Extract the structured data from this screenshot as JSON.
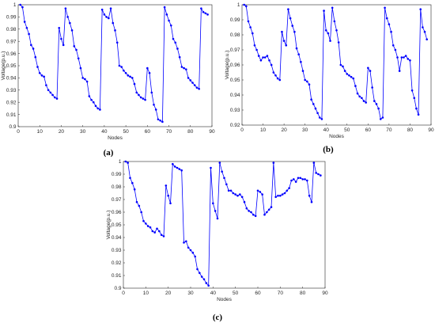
{
  "figure": {
    "line_color": "#0000ff",
    "marker_color": "#0000ff"
  },
  "chart_data": [
    {
      "type": "line",
      "panel_label": "(a)",
      "xlabel": "Nodes",
      "ylabel": "Voltage(p.u.)",
      "xlim": [
        0,
        90
      ],
      "ylim": [
        0.9,
        1.0
      ],
      "xticks": [
        "0",
        "10",
        "20",
        "30",
        "40",
        "50",
        "60",
        "70",
        "80",
        "90"
      ],
      "yticks": [
        "0.9",
        "0.91",
        "0.92",
        "0.93",
        "0.94",
        "0.95",
        "0.96",
        "0.97",
        "0.98",
        "0.99",
        "1"
      ],
      "grid": false,
      "series": [
        {
          "x": [
            1,
            2,
            3,
            4,
            5,
            6,
            7,
            8,
            9,
            10,
            11,
            12,
            13,
            14,
            15,
            16,
            17,
            18,
            19,
            20,
            21,
            22,
            23,
            24,
            25,
            26,
            27,
            28,
            29,
            30,
            31,
            32,
            33,
            34,
            35,
            36,
            37,
            38,
            39,
            40,
            41,
            42,
            43,
            44,
            45,
            46,
            47,
            48,
            49,
            50,
            51,
            52,
            53,
            54,
            55,
            56,
            57,
            58,
            59,
            60,
            61,
            62,
            63,
            64,
            65,
            66,
            67,
            68,
            69,
            70,
            71,
            72,
            73,
            74,
            75,
            76,
            77,
            78,
            79,
            80,
            81,
            82,
            83,
            84,
            85,
            86,
            87,
            88
          ],
          "y": [
            1.0,
            0.998,
            0.986,
            0.981,
            0.976,
            0.967,
            0.964,
            0.957,
            0.949,
            0.944,
            0.942,
            0.941,
            0.934,
            0.93,
            0.928,
            0.926,
            0.924,
            0.923,
            0.981,
            0.972,
            0.967,
            0.997,
            0.99,
            0.985,
            0.979,
            0.966,
            0.963,
            0.956,
            0.948,
            0.94,
            0.939,
            0.937,
            0.925,
            0.922,
            0.92,
            0.917,
            0.915,
            0.914,
            0.996,
            0.992,
            0.99,
            0.989,
            0.997,
            0.985,
            0.979,
            0.969,
            0.95,
            0.949,
            0.946,
            0.944,
            0.942,
            0.941,
            0.94,
            0.935,
            0.928,
            0.926,
            0.924,
            0.923,
            0.922,
            0.948,
            0.944,
            0.928,
            0.918,
            0.914,
            0.906,
            0.905,
            0.904,
            0.998,
            0.992,
            0.987,
            0.983,
            0.972,
            0.969,
            0.964,
            0.957,
            0.949,
            0.948,
            0.947,
            0.94,
            0.938,
            0.936,
            0.934,
            0.932,
            0.931,
            0.997,
            0.994,
            0.993,
            0.992
          ]
        }
      ]
    },
    {
      "type": "line",
      "panel_label": "(b)",
      "xlabel": "Nodes",
      "ylabel": "Voltage(p.u.)",
      "xlim": [
        0,
        90
      ],
      "ylim": [
        0.92,
        1.0
      ],
      "xticks": [
        "0",
        "10",
        "20",
        "30",
        "40",
        "50",
        "60",
        "70",
        "80",
        "90"
      ],
      "yticks": [
        "0.92",
        "0.93",
        "0.94",
        "0.95",
        "0.96",
        "0.97",
        "0.98",
        "0.99",
        "1"
      ],
      "grid": false,
      "series": [
        {
          "x": [
            1,
            2,
            3,
            4,
            5,
            6,
            7,
            8,
            9,
            10,
            11,
            12,
            13,
            14,
            15,
            16,
            17,
            18,
            19,
            20,
            21,
            22,
            23,
            24,
            25,
            26,
            27,
            28,
            29,
            30,
            31,
            32,
            33,
            34,
            35,
            36,
            37,
            38,
            39,
            40,
            41,
            42,
            43,
            44,
            45,
            46,
            47,
            48,
            49,
            50,
            51,
            52,
            53,
            54,
            55,
            56,
            57,
            58,
            59,
            60,
            61,
            62,
            63,
            64,
            65,
            66,
            67,
            68,
            69,
            70,
            71,
            72,
            73,
            74,
            75,
            76,
            77,
            78,
            79,
            80,
            81,
            82,
            83,
            84,
            85,
            86,
            87,
            88
          ],
          "y": [
            1.0,
            0.999,
            0.989,
            0.985,
            0.981,
            0.973,
            0.97,
            0.966,
            0.963,
            0.965,
            0.965,
            0.966,
            0.963,
            0.96,
            0.955,
            0.953,
            0.951,
            0.95,
            0.982,
            0.976,
            0.973,
            0.997,
            0.991,
            0.986,
            0.982,
            0.971,
            0.967,
            0.962,
            0.956,
            0.95,
            0.949,
            0.947,
            0.937,
            0.934,
            0.931,
            0.928,
            0.925,
            0.924,
            0.996,
            0.983,
            0.981,
            0.976,
            0.998,
            0.989,
            0.983,
            0.975,
            0.96,
            0.959,
            0.956,
            0.954,
            0.953,
            0.952,
            0.951,
            0.946,
            0.941,
            0.939,
            0.938,
            0.936,
            0.935,
            0.958,
            0.956,
            0.945,
            0.936,
            0.934,
            0.931,
            0.924,
            0.925,
            0.998,
            0.991,
            0.987,
            0.982,
            0.973,
            0.97,
            0.965,
            0.956,
            0.965,
            0.965,
            0.966,
            0.964,
            0.963,
            0.943,
            0.938,
            0.931,
            0.927,
            0.997,
            0.985,
            0.982,
            0.977
          ]
        }
      ]
    },
    {
      "type": "line",
      "panel_label": "(c)",
      "xlabel": "Nodes",
      "ylabel": "Voltage(p.u.)",
      "xlim": [
        0,
        90
      ],
      "ylim": [
        0.9,
        1.0
      ],
      "xticks": [
        "0",
        "10",
        "20",
        "30",
        "40",
        "50",
        "60",
        "70",
        "80",
        "90"
      ],
      "yticks": [
        "0.9",
        "0.91",
        "0.92",
        "0.93",
        "0.94",
        "0.95",
        "0.96",
        "0.97",
        "0.98",
        "0.99",
        "1"
      ],
      "grid": false,
      "series": [
        {
          "x": [
            1,
            2,
            3,
            4,
            5,
            6,
            7,
            8,
            9,
            10,
            11,
            12,
            13,
            14,
            15,
            16,
            17,
            18,
            19,
            20,
            21,
            22,
            23,
            24,
            25,
            26,
            27,
            28,
            29,
            30,
            31,
            32,
            33,
            34,
            35,
            36,
            37,
            38,
            39,
            40,
            41,
            42,
            43,
            44,
            45,
            46,
            47,
            48,
            49,
            50,
            51,
            52,
            53,
            54,
            55,
            56,
            57,
            58,
            59,
            60,
            61,
            62,
            63,
            64,
            65,
            66,
            67,
            68,
            69,
            70,
            71,
            72,
            73,
            74,
            75,
            76,
            77,
            78,
            79,
            80,
            81,
            82,
            83,
            84,
            85,
            86,
            87,
            88
          ],
          "y": [
            1.0,
            0.999,
            0.987,
            0.983,
            0.978,
            0.968,
            0.965,
            0.96,
            0.953,
            0.951,
            0.949,
            0.948,
            0.945,
            0.944,
            0.947,
            0.945,
            0.942,
            0.941,
            0.981,
            0.973,
            0.967,
            0.998,
            0.996,
            0.995,
            0.994,
            0.993,
            0.936,
            0.937,
            0.932,
            0.93,
            0.928,
            0.925,
            0.915,
            0.912,
            0.909,
            0.907,
            0.904,
            0.902,
            0.995,
            0.967,
            0.961,
            0.955,
            0.999,
            0.992,
            0.987,
            0.982,
            0.977,
            0.977,
            0.975,
            0.974,
            0.973,
            0.974,
            0.972,
            0.968,
            0.963,
            0.961,
            0.96,
            0.958,
            0.957,
            0.977,
            0.976,
            0.974,
            0.958,
            0.96,
            0.962,
            0.964,
            0.999,
            0.972,
            0.973,
            0.973,
            0.974,
            0.975,
            0.977,
            0.979,
            0.985,
            0.986,
            0.984,
            0.987,
            0.987,
            0.986,
            0.986,
            0.985,
            0.973,
            0.968,
            0.999,
            0.991,
            0.99,
            0.989
          ]
        }
      ]
    }
  ]
}
